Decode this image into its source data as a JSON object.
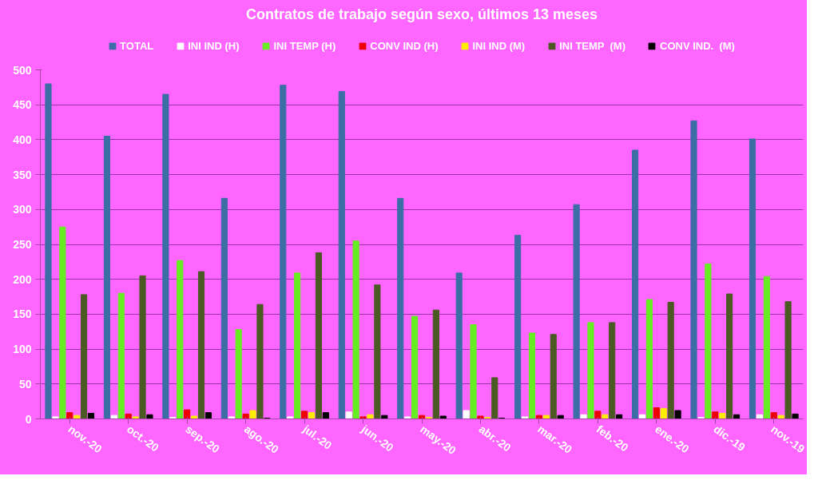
{
  "chart_data": {
    "type": "bar",
    "title": "Contratos de trabajo según sexo, últimos 13 meses",
    "categories": [
      "nov.-20",
      "oct.-20",
      "sep.-20",
      "ago.-20",
      "jul.-20",
      "jun.-20",
      "may.-20",
      "abr.-20",
      "mar.-20",
      "feb.-20",
      "ene.-20",
      "dic.-19",
      "nov.-19"
    ],
    "series": [
      {
        "name": "TOTAL",
        "color": "#3b6ea5",
        "values": [
          480,
          405,
          465,
          316,
          478,
          469,
          316,
          209,
          263,
          307,
          385,
          427,
          401
        ]
      },
      {
        "name": "INI IND (H)",
        "color": "#ffffff",
        "values": [
          3,
          5,
          2,
          3,
          3,
          10,
          3,
          12,
          3,
          6,
          6,
          2,
          6
        ]
      },
      {
        "name": "INI TEMP (H)",
        "color": "#66ee22",
        "values": [
          275,
          180,
          227,
          128,
          209,
          255,
          147,
          135,
          123,
          138,
          171,
          222,
          204
        ]
      },
      {
        "name": "CONV IND (H)",
        "color": "#ee0000",
        "values": [
          9,
          7,
          13,
          7,
          11,
          3,
          5,
          4,
          5,
          11,
          16,
          10,
          9
        ]
      },
      {
        "name": "INI IND (M)",
        "color": "#ffee00",
        "values": [
          5,
          3,
          4,
          12,
          9,
          6,
          2,
          2,
          5,
          6,
          15,
          8,
          5
        ]
      },
      {
        "name": "INI TEMP  (M)",
        "color": "#4a5a22",
        "values": [
          178,
          205,
          211,
          164,
          238,
          192,
          156,
          59,
          121,
          138,
          167,
          179,
          168
        ]
      },
      {
        "name": "CONV IND.  (M)",
        "color": "#000000",
        "values": [
          8,
          6,
          9,
          1,
          9,
          5,
          4,
          1,
          5,
          6,
          12,
          6,
          7
        ]
      }
    ],
    "ylim": [
      0,
      500
    ],
    "yticks": [
      0,
      50,
      100,
      150,
      200,
      250,
      300,
      350,
      400,
      450,
      500
    ],
    "grid": "y",
    "legend": "top"
  }
}
